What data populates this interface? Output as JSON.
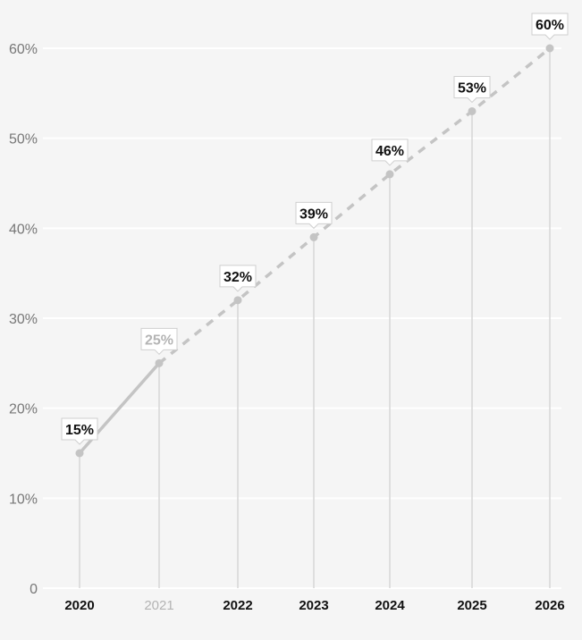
{
  "chart_data": {
    "type": "line",
    "title": "",
    "xlabel": "",
    "ylabel": "",
    "x": [
      "2020",
      "2021",
      "2022",
      "2023",
      "2024",
      "2025",
      "2026"
    ],
    "y_ticks": [
      "0",
      "10%",
      "20%",
      "30%",
      "40%",
      "50%",
      "60%"
    ],
    "ylim": [
      0,
      60
    ],
    "grid": true,
    "series": [
      {
        "values": [
          15,
          25,
          32,
          39,
          46,
          53,
          60
        ],
        "labels": [
          "15%",
          "25%",
          "32%",
          "39%",
          "46%",
          "53%",
          "60%"
        ],
        "solid_until_index": 1,
        "dashed_from_index": 1,
        "color": "#c4c4c4"
      }
    ],
    "muted_index": 1,
    "muted_color": "#b4b4b4",
    "label_color": "#111111",
    "grid_color": "#ffffff",
    "axis_text_color": "#777777"
  }
}
